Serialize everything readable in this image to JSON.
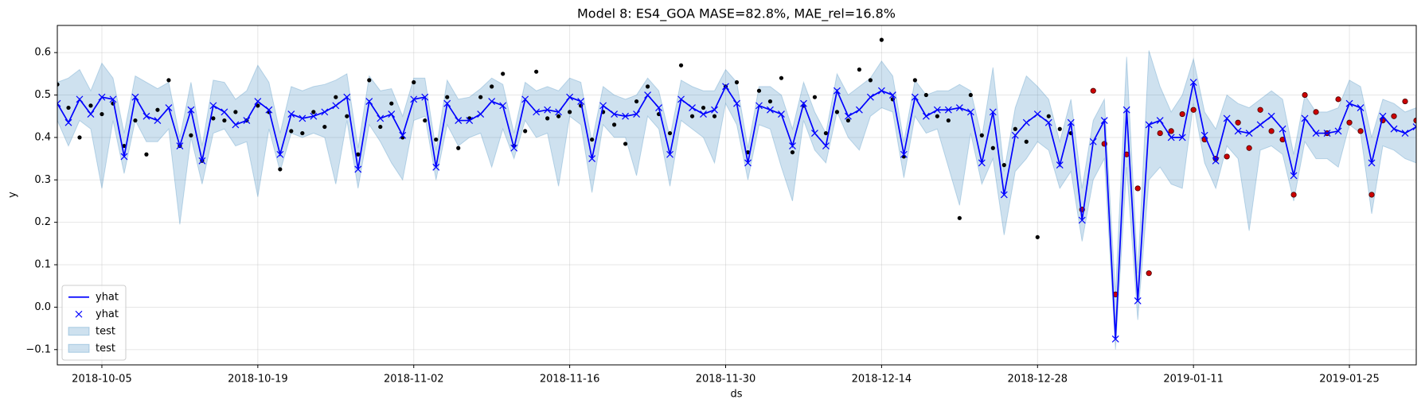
{
  "chart_data": {
    "type": "line",
    "title": "Model 8: ES4_GOA MASE=82.8%, MAE_rel=16.8%",
    "xlabel": "ds",
    "ylabel": "y",
    "x": [
      "2018-10-01",
      "2018-10-02",
      "2018-10-03",
      "2018-10-04",
      "2018-10-05",
      "2018-10-06",
      "2018-10-07",
      "2018-10-08",
      "2018-10-09",
      "2018-10-10",
      "2018-10-11",
      "2018-10-12",
      "2018-10-13",
      "2018-10-14",
      "2018-10-15",
      "2018-10-16",
      "2018-10-17",
      "2018-10-18",
      "2018-10-19",
      "2018-10-20",
      "2018-10-21",
      "2018-10-22",
      "2018-10-23",
      "2018-10-24",
      "2018-10-25",
      "2018-10-26",
      "2018-10-27",
      "2018-10-28",
      "2018-10-29",
      "2018-10-30",
      "2018-10-31",
      "2018-11-01",
      "2018-11-02",
      "2018-11-03",
      "2018-11-04",
      "2018-11-05",
      "2018-11-06",
      "2018-11-07",
      "2018-11-08",
      "2018-11-09",
      "2018-11-10",
      "2018-11-11",
      "2018-11-12",
      "2018-11-13",
      "2018-11-14",
      "2018-11-15",
      "2018-11-16",
      "2018-11-17",
      "2018-11-18",
      "2018-11-19",
      "2018-11-20",
      "2018-11-21",
      "2018-11-22",
      "2018-11-23",
      "2018-11-24",
      "2018-11-25",
      "2018-11-26",
      "2018-11-27",
      "2018-11-28",
      "2018-11-29",
      "2018-11-30",
      "2018-12-01",
      "2018-12-02",
      "2018-12-03",
      "2018-12-04",
      "2018-12-05",
      "2018-12-06",
      "2018-12-07",
      "2018-12-08",
      "2018-12-09",
      "2018-12-10",
      "2018-12-11",
      "2018-12-12",
      "2018-12-13",
      "2018-12-14",
      "2018-12-15",
      "2018-12-16",
      "2018-12-17",
      "2018-12-18",
      "2018-12-19",
      "2018-12-20",
      "2018-12-21",
      "2018-12-22",
      "2018-12-23",
      "2018-12-24",
      "2018-12-25",
      "2018-12-26",
      "2018-12-27",
      "2018-12-28",
      "2018-12-29",
      "2018-12-30",
      "2018-12-31",
      "2019-01-01",
      "2019-01-02",
      "2019-01-03",
      "2019-01-04",
      "2019-01-05",
      "2019-01-06",
      "2019-01-07",
      "2019-01-08",
      "2019-01-09",
      "2019-01-10",
      "2019-01-11",
      "2019-01-12",
      "2019-01-13",
      "2019-01-14",
      "2019-01-15",
      "2019-01-16",
      "2019-01-17",
      "2019-01-18",
      "2019-01-19",
      "2019-01-20",
      "2019-01-21",
      "2019-01-22",
      "2019-01-23",
      "2019-01-24",
      "2019-01-25",
      "2019-01-26",
      "2019-01-27",
      "2019-01-28",
      "2019-01-29",
      "2019-01-30",
      "2019-01-31"
    ],
    "xlim": [
      "2018-10-01",
      "2019-01-31"
    ],
    "xticks": [
      "2018-10-05",
      "2018-10-19",
      "2018-11-02",
      "2018-11-16",
      "2018-11-30",
      "2018-12-14",
      "2018-12-28",
      "2019-01-11",
      "2019-01-25"
    ],
    "ylim": [
      -0.136,
      0.664
    ],
    "yticks": [
      {
        "value": -0.1,
        "label": "−0.1"
      },
      {
        "value": 0,
        "label": "0.0"
      },
      {
        "value": 0.1,
        "label": "0.1"
      },
      {
        "value": 0.2,
        "label": "0.2"
      },
      {
        "value": 0.3,
        "label": "0.3"
      },
      {
        "value": 0.4,
        "label": "0.4"
      },
      {
        "value": 0.5,
        "label": "0.5"
      },
      {
        "value": 0.6,
        "label": "0.6"
      }
    ],
    "grid": true,
    "legend_loc": "lower left",
    "legend": [
      {
        "label": "yhat",
        "style": "line"
      },
      {
        "label": "yhat",
        "style": "x"
      },
      {
        "label": "test",
        "style": "fill"
      },
      {
        "label": "test",
        "style": "fill"
      }
    ],
    "yhat": {
      "color": "#0000ff",
      "marker": "x",
      "values": [
        0.48,
        0.435,
        0.49,
        0.455,
        0.495,
        0.49,
        0.355,
        0.495,
        0.45,
        0.44,
        0.47,
        0.38,
        0.465,
        0.345,
        0.475,
        0.46,
        0.43,
        0.44,
        0.485,
        0.465,
        0.36,
        0.455,
        0.445,
        0.45,
        0.46,
        0.475,
        0.495,
        0.325,
        0.485,
        0.445,
        0.455,
        0.405,
        0.49,
        0.495,
        0.33,
        0.48,
        0.44,
        0.44,
        0.455,
        0.485,
        0.475,
        0.375,
        0.49,
        0.46,
        0.465,
        0.46,
        0.495,
        0.485,
        0.35,
        0.475,
        0.455,
        0.45,
        0.455,
        0.5,
        0.47,
        0.36,
        0.49,
        0.47,
        0.455,
        0.465,
        0.52,
        0.48,
        0.34,
        0.475,
        0.465,
        0.455,
        0.38,
        0.48,
        0.41,
        0.38,
        0.51,
        0.45,
        0.465,
        0.495,
        0.51,
        0.5,
        0.36,
        0.495,
        0.45,
        0.465,
        0.465,
        0.47,
        0.46,
        0.34,
        0.46,
        0.265,
        0.405,
        0.435,
        0.455,
        0.435,
        0.335,
        0.435,
        0.205,
        0.39,
        0.44,
        -0.075,
        0.465,
        0.015,
        0.43,
        0.44,
        0.4,
        0.4,
        0.53,
        0.405,
        0.345,
        0.445,
        0.415,
        0.41,
        0.43,
        0.45,
        0.42,
        0.31,
        0.445,
        0.41,
        0.41,
        0.415,
        0.48,
        0.47,
        0.34,
        0.45,
        0.42,
        0.41,
        0.425
      ]
    },
    "band": {
      "color": "#1f77b4",
      "upper": [
        0.53,
        0.54,
        0.56,
        0.51,
        0.575,
        0.54,
        0.41,
        0.545,
        0.53,
        0.515,
        0.53,
        0.4,
        0.53,
        0.38,
        0.535,
        0.53,
        0.49,
        0.51,
        0.57,
        0.53,
        0.41,
        0.52,
        0.51,
        0.52,
        0.525,
        0.535,
        0.55,
        0.375,
        0.545,
        0.51,
        0.515,
        0.45,
        0.54,
        0.54,
        0.37,
        0.535,
        0.49,
        0.495,
        0.515,
        0.54,
        0.525,
        0.41,
        0.53,
        0.51,
        0.52,
        0.51,
        0.54,
        0.53,
        0.39,
        0.52,
        0.5,
        0.49,
        0.5,
        0.54,
        0.51,
        0.4,
        0.535,
        0.52,
        0.51,
        0.51,
        0.56,
        0.53,
        0.375,
        0.52,
        0.52,
        0.5,
        0.42,
        0.53,
        0.46,
        0.41,
        0.55,
        0.5,
        0.52,
        0.54,
        0.58,
        0.545,
        0.39,
        0.535,
        0.5,
        0.51,
        0.51,
        0.525,
        0.51,
        0.4,
        0.565,
        0.32,
        0.47,
        0.545,
        0.52,
        0.49,
        0.39,
        0.49,
        0.28,
        0.44,
        0.49,
        0.03,
        0.59,
        0.08,
        0.605,
        0.52,
        0.46,
        0.5,
        0.585,
        0.46,
        0.42,
        0.5,
        0.48,
        0.47,
        0.49,
        0.51,
        0.49,
        0.36,
        0.5,
        0.46,
        0.46,
        0.47,
        0.535,
        0.52,
        0.4,
        0.49,
        0.48,
        0.46,
        0.47
      ],
      "lower": [
        0.44,
        0.38,
        0.44,
        0.42,
        0.28,
        0.44,
        0.315,
        0.44,
        0.39,
        0.39,
        0.42,
        0.195,
        0.4,
        0.29,
        0.41,
        0.42,
        0.38,
        0.39,
        0.26,
        0.42,
        0.32,
        0.41,
        0.4,
        0.41,
        0.4,
        0.29,
        0.44,
        0.28,
        0.43,
        0.39,
        0.34,
        0.3,
        0.44,
        0.45,
        0.3,
        0.43,
        0.38,
        0.4,
        0.41,
        0.33,
        0.42,
        0.35,
        0.44,
        0.4,
        0.41,
        0.285,
        0.45,
        0.43,
        0.27,
        0.43,
        0.4,
        0.4,
        0.31,
        0.45,
        0.42,
        0.285,
        0.44,
        0.42,
        0.4,
        0.34,
        0.48,
        0.43,
        0.3,
        0.43,
        0.42,
        0.33,
        0.25,
        0.44,
        0.37,
        0.34,
        0.46,
        0.4,
        0.37,
        0.45,
        0.47,
        0.46,
        0.305,
        0.45,
        0.41,
        0.42,
        0.33,
        0.24,
        0.41,
        0.29,
        0.35,
        0.17,
        0.32,
        0.35,
        0.39,
        0.37,
        0.28,
        0.32,
        0.155,
        0.3,
        0.35,
        -0.1,
        0.33,
        -0.03,
        0.3,
        0.33,
        0.29,
        0.28,
        0.48,
        0.34,
        0.28,
        0.38,
        0.35,
        0.18,
        0.37,
        0.38,
        0.36,
        0.25,
        0.39,
        0.35,
        0.35,
        0.33,
        0.43,
        0.41,
        0.22,
        0.38,
        0.37,
        0.35,
        0.34
      ]
    },
    "train_points": {
      "color": "#000000",
      "values": [
        0.525,
        0.47,
        0.4,
        0.475,
        0.455,
        0.48,
        0.38,
        0.44,
        0.36,
        0.465,
        0.535,
        0.38,
        0.405,
        0.345,
        0.445,
        0.44,
        0.46,
        0.44,
        0.475,
        0.46,
        0.325,
        0.415,
        0.41,
        0.46,
        0.425,
        0.495,
        0.45,
        0.36,
        0.535,
        0.425,
        0.48,
        0.4,
        0.53,
        0.44,
        0.395,
        0.495,
        0.375,
        0.445,
        0.495,
        0.52,
        0.55,
        0.38,
        0.415,
        0.555,
        0.445,
        0.45,
        0.46,
        0.475,
        0.395,
        0.46,
        0.43,
        0.385,
        0.485,
        0.52,
        0.455,
        0.41,
        0.57,
        0.45,
        0.47,
        0.45,
        0.52,
        0.53,
        0.365,
        0.51,
        0.485,
        0.54,
        0.365,
        0.475,
        0.495,
        0.41,
        0.46,
        0.44,
        0.56,
        0.535,
        0.63,
        0.49,
        0.355,
        0.535,
        0.5,
        0.45,
        0.44,
        0.21,
        0.5,
        0.405,
        0.375,
        0.335,
        0.42,
        0.39,
        0.165,
        0.45,
        0.42,
        0.41,
        null,
        null,
        null,
        null,
        null,
        null,
        null,
        null,
        null,
        null,
        null,
        null,
        null,
        null,
        null,
        null,
        null,
        null,
        null,
        null,
        null,
        null,
        null,
        null,
        null,
        null,
        null,
        null,
        null,
        null,
        null
      ]
    },
    "test_points": {
      "color": "#cc0000",
      "values": [
        null,
        null,
        null,
        null,
        null,
        null,
        null,
        null,
        null,
        null,
        null,
        null,
        null,
        null,
        null,
        null,
        null,
        null,
        null,
        null,
        null,
        null,
        null,
        null,
        null,
        null,
        null,
        null,
        null,
        null,
        null,
        null,
        null,
        null,
        null,
        null,
        null,
        null,
        null,
        null,
        null,
        null,
        null,
        null,
        null,
        null,
        null,
        null,
        null,
        null,
        null,
        null,
        null,
        null,
        null,
        null,
        null,
        null,
        null,
        null,
        null,
        null,
        null,
        null,
        null,
        null,
        null,
        null,
        null,
        null,
        null,
        null,
        null,
        null,
        null,
        null,
        null,
        null,
        null,
        null,
        null,
        null,
        null,
        null,
        null,
        null,
        null,
        null,
        null,
        null,
        null,
        null,
        0.23,
        0.51,
        0.385,
        0.03,
        0.36,
        0.28,
        0.08,
        0.41,
        0.415,
        0.455,
        0.465,
        0.395,
        0.35,
        0.355,
        0.435,
        0.375,
        0.465,
        0.415,
        0.395,
        0.265,
        0.5,
        0.46,
        0.41,
        0.49,
        0.435,
        0.415,
        0.265,
        0.44,
        0.45,
        0.485,
        0.44
      ]
    }
  }
}
